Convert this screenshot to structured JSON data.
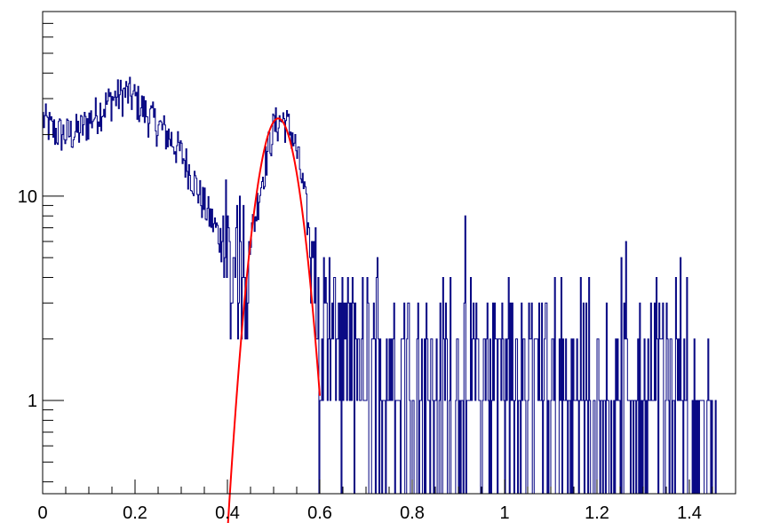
{
  "chart_data": {
    "type": "histogram",
    "title": "",
    "xlabel": "",
    "ylabel": "",
    "xlim": [
      0,
      1.5
    ],
    "ylim": [
      0.35,
      80
    ],
    "yscale": "log",
    "grid": false,
    "legend": "none",
    "xtick_labels": [
      "0",
      "0.2",
      "0.4",
      "0.6",
      "0.8",
      "1",
      "1.2",
      "1.4"
    ],
    "ytick_labels": [
      "1",
      "10"
    ],
    "histogram": {
      "color": "#000080",
      "bin_width": 0.002,
      "profile_x": [
        0.0,
        0.02,
        0.05,
        0.08,
        0.12,
        0.15,
        0.18,
        0.2,
        0.22,
        0.25,
        0.27,
        0.3,
        0.32,
        0.34,
        0.36,
        0.38,
        0.4,
        0.42,
        0.44,
        0.46,
        0.48,
        0.5,
        0.52,
        0.54,
        0.56,
        0.58,
        0.6,
        0.7,
        0.8,
        0.9,
        1.0,
        1.1,
        1.2,
        1.3,
        1.4,
        1.45
      ],
      "profile_mean": [
        24,
        21,
        20,
        21,
        26,
        30,
        32,
        30,
        26,
        22,
        20,
        16,
        13,
        10,
        8,
        6.5,
        5,
        4.5,
        5,
        8,
        14,
        22,
        24,
        20,
        12,
        5,
        2.2,
        1.5,
        1.5,
        1.5,
        1.5,
        1.3,
        1.2,
        1.3,
        1.1,
        1.0
      ]
    },
    "fit": {
      "color": "#ff0000",
      "function": "gaussian",
      "x_range": [
        0.4,
        0.6
      ],
      "peak_x": 0.51,
      "peak_y": 24,
      "sigma": 0.036
    }
  }
}
